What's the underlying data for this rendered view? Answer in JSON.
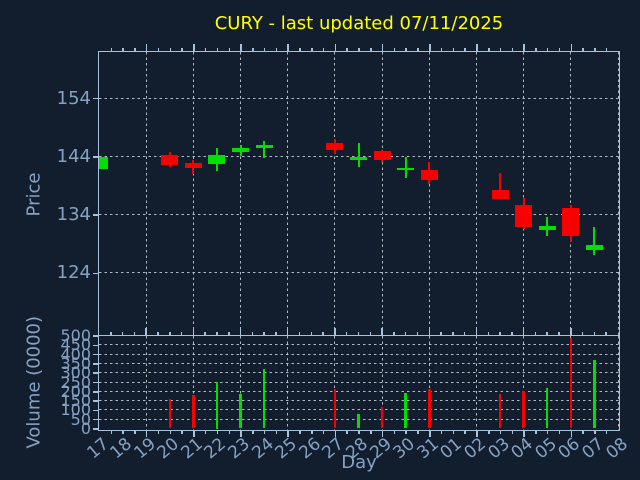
{
  "title": "CURY - last updated 07/11/2025",
  "colors": {
    "background": "#121e2d",
    "title": "#ffff00",
    "spine": "#a6c3de",
    "tick_label": "#85a2c4",
    "grid": "#c4cad2",
    "up": "#00e000",
    "down": "#f80000"
  },
  "axes": {
    "price_label": "Price",
    "volume_label": "Volume (0000)",
    "x_label": "Day",
    "price_ticks": [
      154,
      144,
      134,
      124
    ],
    "volume_ticks": [
      500,
      450,
      400,
      350,
      300,
      250,
      200,
      150,
      100,
      50,
      0
    ]
  },
  "chart_data": {
    "type": "candlestick_with_volume",
    "title": "CURY - last updated 07/11/2025",
    "xlabel": "Day",
    "ylabel": "Price",
    "ylabel2": "Volume (0000)",
    "x": [
      "17",
      "18",
      "19",
      "20",
      "21",
      "22",
      "23",
      "24",
      "25",
      "26",
      "27",
      "28",
      "29",
      "30",
      "31",
      "01",
      "02",
      "03",
      "04",
      "05",
      "06",
      "07",
      "08"
    ],
    "price_ylim": [
      113.5,
      161.9
    ],
    "volume_ylim": [
      0,
      500
    ],
    "price_gridlines": [
      154,
      144,
      134,
      124
    ],
    "vertical_gridline_days": [
      "19",
      "21",
      "23",
      "25",
      "27",
      "29",
      "31",
      "02",
      "04",
      "06",
      "08"
    ],
    "grid_style": "dashed",
    "legend": "none",
    "candles": [
      {
        "date": "17",
        "open": 141.8,
        "high": 143.8,
        "low": 141.8,
        "close": 143.8,
        "volume": 0
      },
      {
        "date": "20",
        "open": 144.3,
        "high": 144.7,
        "low": 142.1,
        "close": 142.5,
        "volume": 160
      },
      {
        "date": "21",
        "open": 142.8,
        "high": 143.4,
        "low": 140.9,
        "close": 142.0,
        "volume": 180
      },
      {
        "date": "22",
        "open": 142.6,
        "high": 145.4,
        "low": 141.4,
        "close": 144.2,
        "volume": 250
      },
      {
        "date": "23",
        "open": 144.7,
        "high": 145.9,
        "low": 144.0,
        "close": 145.4,
        "volume": 185
      },
      {
        "date": "24",
        "open": 145.5,
        "high": 146.6,
        "low": 143.7,
        "close": 145.9,
        "volume": 320
      },
      {
        "date": "27",
        "open": 146.2,
        "high": 147.0,
        "low": 144.4,
        "close": 145.1,
        "volume": 215
      },
      {
        "date": "28",
        "open": 143.4,
        "high": 146.2,
        "low": 142.2,
        "close": 143.8,
        "volume": 80
      },
      {
        "date": "29",
        "open": 144.9,
        "high": 145.1,
        "low": 143.1,
        "close": 143.4,
        "volume": 115
      },
      {
        "date": "30",
        "open": 141.7,
        "high": 143.8,
        "low": 140.3,
        "close": 142.0,
        "volume": 190
      },
      {
        "date": "31",
        "open": 141.7,
        "high": 143.0,
        "low": 139.2,
        "close": 140.0,
        "volume": 215
      },
      {
        "date": "03",
        "open": 138.2,
        "high": 141.2,
        "low": 136.7,
        "close": 136.7,
        "volume": 185
      },
      {
        "date": "04",
        "open": 135.6,
        "high": 136.8,
        "low": 131.5,
        "close": 131.9,
        "volume": 200
      },
      {
        "date": "05",
        "open": 131.4,
        "high": 133.5,
        "low": 130.3,
        "close": 132.0,
        "volume": 220
      },
      {
        "date": "06",
        "open": 135.2,
        "high": 135.6,
        "low": 129.3,
        "close": 130.4,
        "volume": 485
      },
      {
        "date": "07",
        "open": 128.0,
        "high": 131.8,
        "low": 127.0,
        "close": 128.8,
        "volume": 370
      }
    ]
  }
}
